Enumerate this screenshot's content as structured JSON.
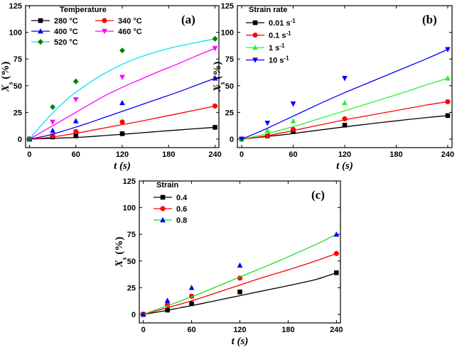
{
  "chart_data": [
    {
      "type": "line",
      "panel": "(a)",
      "xlabel": "t (s)",
      "ylabel": "X_s (%)",
      "xlim": [
        -5,
        245
      ],
      "ylim": [
        -8,
        125
      ],
      "xticks": [
        0,
        60,
        120,
        180,
        240
      ],
      "yticks": [
        0,
        25,
        50,
        75,
        100,
        125
      ],
      "legend": {
        "title": "Temperature",
        "position": "top-left",
        "columns": 2
      },
      "series": [
        {
          "name": "280 °C",
          "color": "#000000",
          "marker": "square",
          "x": [
            0,
            30,
            60,
            120,
            240
          ],
          "y": [
            0,
            2,
            3,
            5,
            11
          ],
          "fit_y": [
            0,
            0.5,
            1.2,
            2.0,
            3.2,
            4.5,
            5.8,
            7.2,
            8.5,
            9.8,
            11
          ]
        },
        {
          "name": "340 °C",
          "color": "#ff0000",
          "marker": "circle",
          "x": [
            0,
            30,
            60,
            120,
            240
          ],
          "y": [
            0,
            3,
            7,
            16,
            31
          ],
          "fit_y": [
            0,
            1.5,
            4.0,
            7.0,
            10.3,
            13.5,
            16.8,
            20.3,
            23.8,
            27.3,
            31
          ]
        },
        {
          "name": "400 °C",
          "color": "#0000ff",
          "marker": "triangle-up",
          "x": [
            0,
            30,
            60,
            120,
            240
          ],
          "y": [
            0,
            8,
            17,
            34,
            57
          ],
          "fit_y": [
            0,
            3.5,
            8.5,
            14.0,
            20.0,
            26.0,
            32.0,
            38.0,
            44.0,
            50.5,
            57
          ]
        },
        {
          "name": "460 °C",
          "color": "#ff00ff",
          "marker": "triangle-down",
          "x": [
            0,
            30,
            60,
            120,
            240
          ],
          "y": [
            0,
            16,
            37,
            58,
            85
          ],
          "fit_y": [
            0,
            10.0,
            20.0,
            30.0,
            40.0,
            48.5,
            56.0,
            63.5,
            70.5,
            78.0,
            85
          ]
        },
        {
          "name": "520 °C",
          "color": "#00e5ee",
          "marker-color": "#008000",
          "marker": "diamond",
          "x": [
            0,
            30,
            60,
            120,
            240
          ],
          "y": [
            0,
            30,
            54,
            83,
            94
          ],
          "fit_y": [
            0,
            20.0,
            37.0,
            50.0,
            61.0,
            70.0,
            77.0,
            82.5,
            87.0,
            90.5,
            94
          ]
        }
      ]
    },
    {
      "type": "line",
      "panel": "(b)",
      "xlabel": "t (s)",
      "ylabel": "X_s (%)",
      "xlim": [
        -5,
        245
      ],
      "ylim": [
        -8,
        125
      ],
      "xticks": [
        0,
        60,
        120,
        180,
        240
      ],
      "yticks": [
        0,
        25,
        50,
        75,
        100,
        125
      ],
      "legend": {
        "title": "Strain rate",
        "position": "top-left",
        "columns": 1
      },
      "series": [
        {
          "name": "0.01 s",
          "unit_sup": "-1",
          "color": "#000000",
          "marker": "square",
          "x": [
            0,
            30,
            60,
            120,
            240
          ],
          "y": [
            0,
            3,
            7,
            13,
            22
          ],
          "fit_y": [
            0,
            2.0,
            4.0,
            6.5,
            9.0,
            11.5,
            13.8,
            16.0,
            18.2,
            20.2,
            22
          ]
        },
        {
          "name": "0.1 s",
          "unit_sup": "-1",
          "color": "#ff0000",
          "marker": "circle",
          "x": [
            0,
            30,
            60,
            120,
            240
          ],
          "y": [
            0,
            3,
            9,
            19,
            35
          ],
          "fit_y": [
            0,
            2.5,
            6.0,
            10.0,
            14.0,
            18.0,
            21.5,
            25.0,
            28.5,
            32.0,
            35
          ]
        },
        {
          "name": "1 s",
          "unit_sup": "-1",
          "color": "#33ee33",
          "marker": "triangle-up",
          "x": [
            0,
            30,
            60,
            120,
            240
          ],
          "y": [
            0,
            8,
            17,
            34,
            57
          ],
          "fit_y": [
            0,
            4.0,
            9.0,
            14.5,
            20.5,
            26.5,
            32.5,
            38.5,
            44.5,
            51.0,
            57
          ]
        },
        {
          "name": "10 s",
          "unit_sup": "-1",
          "color": "#0000ff",
          "marker": "triangle-down",
          "x": [
            0,
            30,
            60,
            120,
            240
          ],
          "y": [
            0,
            15,
            33,
            57,
            84
          ],
          "fit_y": [
            0,
            8.0,
            17.0,
            26.0,
            35.0,
            43.5,
            51.5,
            59.5,
            67.5,
            75.5,
            84
          ]
        }
      ]
    },
    {
      "type": "line",
      "panel": "(c)",
      "xlabel": "t (s)",
      "ylabel": "X_s (%)",
      "xlim": [
        -5,
        245
      ],
      "ylim": [
        -8,
        125
      ],
      "xticks": [
        0,
        60,
        120,
        180,
        240
      ],
      "yticks": [
        0,
        25,
        50,
        75,
        100,
        125
      ],
      "legend": {
        "title": "Strain",
        "position": "top-left",
        "columns": 1
      },
      "series": [
        {
          "name": "0.4",
          "color": "#000000",
          "marker": "square",
          "x": [
            0,
            30,
            60,
            120,
            240
          ],
          "y": [
            0,
            4,
            10,
            21,
            39
          ],
          "fit_y": [
            0,
            3.0,
            6.5,
            10.0,
            13.8,
            17.5,
            21.3,
            25.0,
            28.8,
            33.0,
            39
          ]
        },
        {
          "name": "0.6",
          "color": "#ff0000",
          "marker": "circle",
          "x": [
            0,
            30,
            60,
            120,
            240
          ],
          "y": [
            0,
            9,
            17,
            34,
            57
          ],
          "fit_y": [
            0,
            5.0,
            10.0,
            15.5,
            21.5,
            27.5,
            33.5,
            39.0,
            44.5,
            50.5,
            57
          ]
        },
        {
          "name": "0.8",
          "color": "#22dd22",
          "marker": "triangle-up",
          "marker-color": "#0000ff",
          "x": [
            0,
            30,
            60,
            120,
            240
          ],
          "y": [
            0,
            13,
            25,
            46,
            75
          ],
          "fit_y": [
            0,
            6.5,
            13.0,
            20.0,
            27.5,
            35.0,
            42.5,
            50.0,
            58.0,
            66.0,
            75
          ]
        }
      ]
    }
  ]
}
